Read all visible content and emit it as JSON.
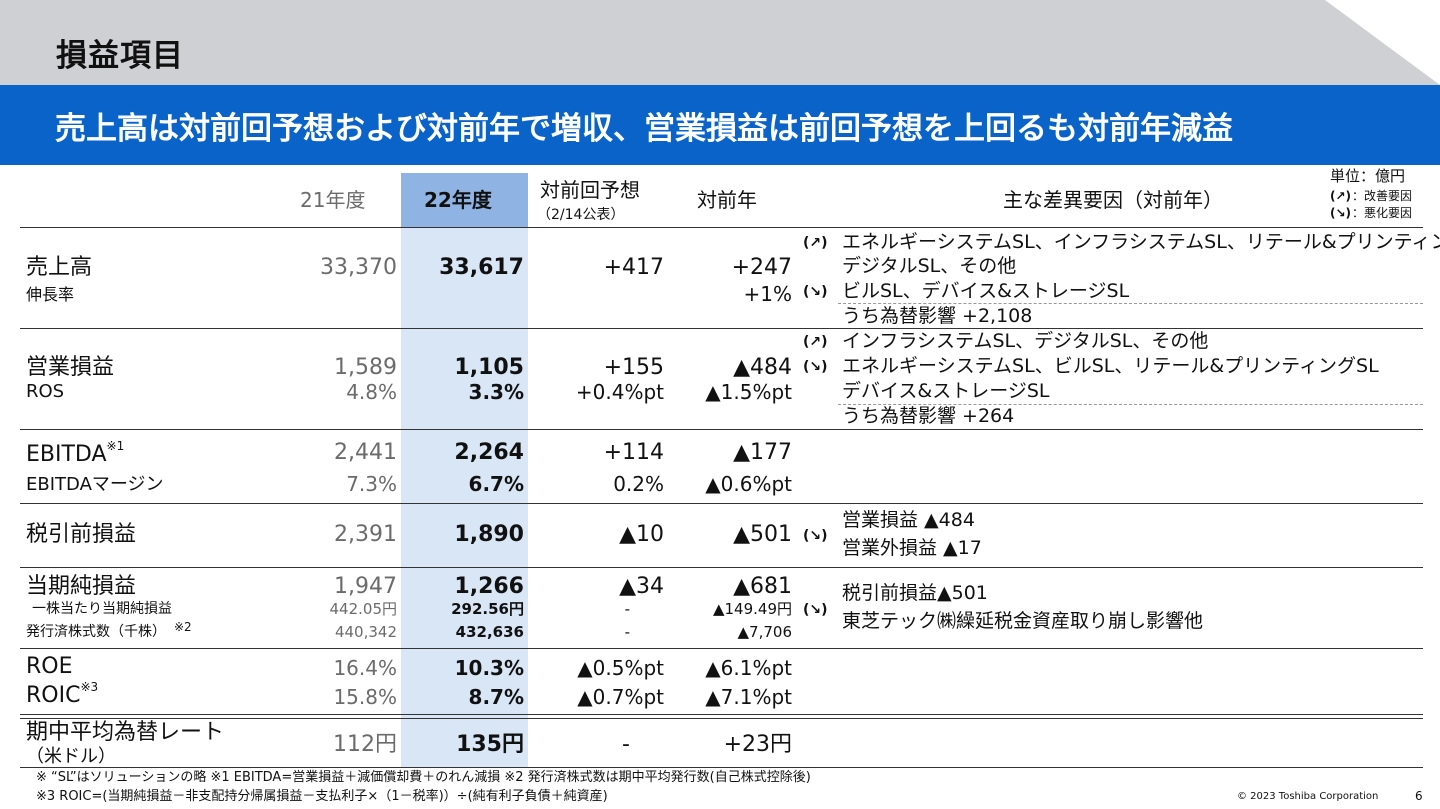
{
  "header": {
    "title": "損益項目"
  },
  "banner": {
    "headline": "売上高は対前回予想および対前年で増収、営業損益は前回予想を上回るも対前年減益"
  },
  "columns": {
    "fy21": "21年度",
    "fy22": "22年度",
    "vs_forecast": "対前回予想",
    "vs_forecast_note": "（2/14公表）",
    "vs_prev_year": "対前年",
    "factors": "主な差異要因（対前年）",
    "unit": "単位：億円",
    "legend_improve": "：改善要因",
    "legend_worsen": "：悪化要因"
  },
  "rows": {
    "sales": {
      "label": "売上高",
      "sublabel": "伸長率",
      "fy21": "33,370",
      "fy22": "33,617",
      "vs_forecast": "+417",
      "vs_prev": "+247",
      "vs_prev_sub": "+1%",
      "factor_up_1": "エネルギーシステムSL、インフラシステムSL、リテール&プリンティングSL",
      "factor_up_2": "デジタルSL、その他",
      "factor_down": "ビルSL、デバイス&ストレージSL",
      "fx": "うち為替影響 +2,108"
    },
    "op": {
      "label": "営業損益",
      "sublabel": "ROS",
      "fy21": "1,589",
      "fy21_sub": "4.8%",
      "fy22": "1,105",
      "fy22_sub": "3.3%",
      "vs_forecast": "+155",
      "vs_forecast_sub": "+0.4%pt",
      "vs_prev": "▲484",
      "vs_prev_sub": "▲1.5%pt",
      "factor_up": "インフラシステムSL、デジタルSL、その他",
      "factor_down_1": "エネルギーシステムSL、ビルSL、リテール&プリンティングSL",
      "factor_down_2": "デバイス&ストレージSL",
      "fx": "うち為替影響 +264"
    },
    "ebitda": {
      "label": "EBITDA",
      "note": "※1",
      "sublabel": "EBITDAマージン",
      "fy21": "2,441",
      "fy21_sub": "7.3%",
      "fy22": "2,264",
      "fy22_sub": "6.7%",
      "vs_forecast": "+114",
      "vs_forecast_sub": "0.2%",
      "vs_prev": "▲177",
      "vs_prev_sub": "▲0.6%pt"
    },
    "pretax": {
      "label": "税引前損益",
      "fy21": "2,391",
      "fy22": "1,890",
      "vs_forecast": "▲10",
      "vs_prev": "▲501",
      "factor_1": "営業損益 ▲484",
      "factor_2": "営業外損益 ▲17"
    },
    "net": {
      "label": "当期純損益",
      "sublabel_1": "一株当たり当期純損益",
      "sublabel_2": "発行済株式数（千株）",
      "note": "※2",
      "fy21": "1,947",
      "fy21_eps": "442.05円",
      "fy21_shares": "440,342",
      "fy22": "1,266",
      "fy22_eps": "292.56円",
      "fy22_shares": "432,636",
      "vs_forecast": "▲34",
      "vs_forecast_eps": "-",
      "vs_forecast_shares": "-",
      "vs_prev": "▲681",
      "vs_prev_eps": "▲149.49円",
      "vs_prev_shares": "▲7,706",
      "factor_1": "税引前損益▲501",
      "factor_2": "東芝テック㈱繰延税金資産取り崩し影響他"
    },
    "roe": {
      "label": "ROE",
      "fy21": "16.4%",
      "fy22": "10.3%",
      "vs_forecast": "▲0.5%pt",
      "vs_prev": "▲6.1%pt"
    },
    "roic": {
      "label": "ROIC",
      "note": "※3",
      "fy21": "15.8%",
      "fy22": "8.7%",
      "vs_forecast": "▲0.7%pt",
      "vs_prev": "▲7.1%pt"
    },
    "fxrate": {
      "label": "期中平均為替レート",
      "sublabel": "（米ドル）",
      "fy21": "112円",
      "fy22": "135円",
      "vs_forecast": "-",
      "vs_prev": "+23円"
    }
  },
  "footnotes": {
    "line1": "※ “SL”はソリューションの略 ※1 EBITDA=営業損益＋減価償却費＋のれん減損 ※2 発行済株式数は期中平均発行数(自己株式控除後)",
    "line2": "※3 ROIC=(当期純損益－非支配持分帰属損益－支払利子×（1－税率)）÷(純有利子負債＋純資産)"
  },
  "footer": {
    "copyright": "© 2023 Toshiba Corporation",
    "page": "6"
  },
  "icons": {
    "improve": "arrow-up-right-icon",
    "worsen": "arrow-down-right-icon"
  },
  "colors": {
    "banner": "#0a63c9",
    "header": "#cfd0d3",
    "highlight": "#d9e6f5",
    "highlight_header": "#8fb4e3"
  }
}
